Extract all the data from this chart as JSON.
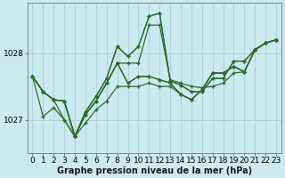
{
  "xlabel": "Graphe pression niveau de la mer (hPa)",
  "background_color": "#cce9f0",
  "grid_color": "#b0d4dc",
  "line_color": "#2d6a2d",
  "marker_color": "#2d6a2d",
  "xlim": [
    -0.5,
    23.5
  ],
  "ylim": [
    1026.5,
    1028.75
  ],
  "yticks": [
    1027,
    1028
  ],
  "xticks": [
    0,
    1,
    2,
    3,
    4,
    5,
    6,
    7,
    8,
    9,
    10,
    11,
    12,
    13,
    14,
    15,
    16,
    17,
    18,
    19,
    20,
    21,
    22,
    23
  ],
  "series": [
    [
      1027.65,
      1027.42,
      1027.3,
      1027.28,
      1026.75,
      1027.08,
      1027.28,
      1027.55,
      1027.85,
      1027.85,
      1027.85,
      1028.42,
      1028.42,
      1027.6,
      1027.55,
      1027.5,
      1027.48,
      1027.5,
      1027.55,
      1027.7,
      1027.72,
      1028.05,
      1028.15,
      1028.2
    ],
    [
      1027.65,
      1027.42,
      1027.3,
      1027.28,
      1026.75,
      1027.08,
      1027.28,
      1027.55,
      1027.85,
      1027.55,
      1027.65,
      1027.65,
      1027.6,
      1027.55,
      1027.38,
      1027.3,
      1027.45,
      1027.7,
      1027.7,
      1027.8,
      1027.72,
      1028.05,
      1028.15,
      1028.2
    ],
    [
      1027.65,
      1027.42,
      1027.3,
      1027.28,
      1026.75,
      1027.08,
      1027.28,
      1027.55,
      1027.85,
      1027.55,
      1027.65,
      1027.65,
      1027.6,
      1027.55,
      1027.38,
      1027.3,
      1027.45,
      1027.7,
      1027.7,
      1027.8,
      1027.72,
      1028.05,
      1028.15,
      1028.2
    ],
    [
      1027.65,
      1027.42,
      1027.3,
      1027.28,
      1026.75,
      1027.12,
      1027.35,
      1027.62,
      1028.1,
      1027.95,
      1028.1,
      1028.55,
      1028.6,
      1027.58,
      1027.52,
      1027.42,
      1027.42,
      1027.62,
      1027.62,
      1027.88,
      1027.88,
      1028.05,
      1028.15,
      1028.2
    ],
    [
      1027.65,
      1027.42,
      1027.3,
      1027.0,
      1026.75,
      1027.12,
      1027.35,
      1027.62,
      1028.1,
      1027.95,
      1028.1,
      1028.55,
      1028.6,
      1027.58,
      1027.52,
      1027.42,
      1027.42,
      1027.62,
      1027.62,
      1027.88,
      1027.88,
      1028.05,
      1028.15,
      1028.2
    ],
    [
      1027.65,
      1027.05,
      1027.18,
      1027.0,
      1026.75,
      1026.95,
      1027.15,
      1027.28,
      1027.5,
      1027.5,
      1027.5,
      1027.55,
      1027.5,
      1027.5,
      1027.38,
      1027.3,
      1027.45,
      1027.7,
      1027.7,
      1027.8,
      1027.72,
      1028.05,
      1028.15,
      1028.2
    ]
  ],
  "fontsize_label": 7,
  "fontsize_tick": 6.5
}
